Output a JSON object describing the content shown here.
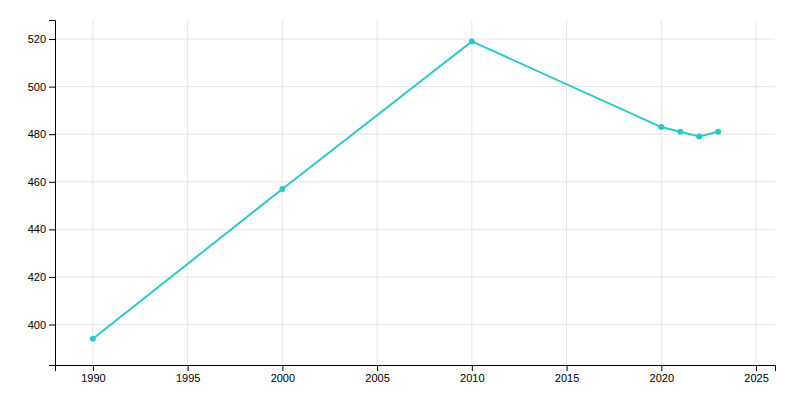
{
  "chart_data": {
    "type": "line",
    "x": [
      1990,
      2000,
      2010,
      2020,
      2021,
      2022,
      2023
    ],
    "values": [
      394,
      457,
      519,
      483,
      481,
      479,
      481
    ],
    "color": "#2ec8c8",
    "marker": "circle",
    "xlim": [
      1988,
      2026
    ],
    "ylim": [
      383,
      528
    ],
    "xticks": [
      1990,
      1995,
      2000,
      2005,
      2010,
      2015,
      2020,
      2025
    ],
    "yticks": [
      400,
      420,
      440,
      460,
      480,
      500,
      520
    ],
    "grid": true
  }
}
